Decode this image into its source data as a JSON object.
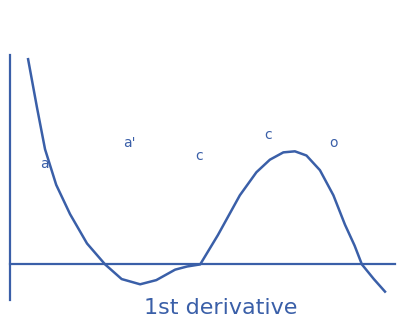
{
  "chart_data": {
    "type": "line",
    "title": "1st derivative",
    "x": [
      4.7,
      7,
      9.1,
      12,
      15.6,
      20,
      24.7,
      29,
      33.8,
      38,
      42.9,
      46,
      49.4,
      54,
      59.7,
      64,
      67.5,
      71,
      74,
      77,
      80.5,
      84,
      87,
      89.5,
      91.4,
      94.5,
      97.4
    ],
    "values": [
      9.8,
      7.5,
      5.5,
      3.8,
      2.4,
      1.0,
      0,
      -0.7,
      -0.95,
      -0.75,
      -0.25,
      -0.1,
      0,
      1.4,
      3.3,
      4.4,
      5.0,
      5.35,
      5.4,
      5.2,
      4.5,
      3.3,
      1.9,
      0.9,
      0,
      -0.7,
      -1.3
    ],
    "color": "#3a5fa8",
    "xlim": [
      0,
      100
    ],
    "ylim": [
      -1.7,
      10
    ],
    "xticks": [],
    "yticks": [],
    "tick_labels": false,
    "grid": false,
    "annotations": [
      "a",
      "a'",
      "c",
      "c",
      "o"
    ]
  }
}
